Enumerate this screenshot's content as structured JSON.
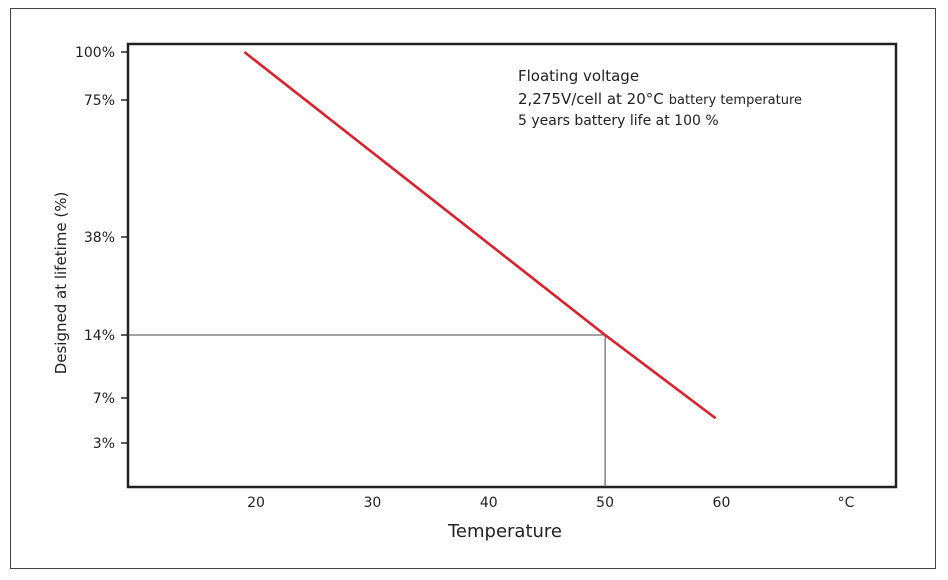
{
  "chart_data": {
    "type": "line",
    "xlabel": "Temperature",
    "ylabel": "Designed at lifetime (%)",
    "x_unit_label": "°C",
    "x_ticks": [
      20,
      30,
      40,
      50,
      60
    ],
    "xlim": [
      9,
      75
    ],
    "y_ticks": [
      "100%",
      "75%",
      "38%",
      "14%",
      "7%",
      "3%"
    ],
    "y_tick_values": [
      100,
      75,
      38,
      14,
      7,
      3
    ],
    "series": [
      {
        "x": [
          19,
          50,
          59.5
        ],
        "y": [
          100,
          14,
          5.2
        ]
      }
    ],
    "reference_point": {
      "x": 50,
      "y": 14
    },
    "annotation": {
      "line1": "Floating voltage",
      "line2_main": "2,275V/cell at 20°C",
      "line2_small": "battery temperature",
      "line3": "5 years battery life at 100 %"
    },
    "grid": false,
    "legend": "none",
    "colors": {
      "series": "#d9212b",
      "axis": "#222222",
      "reference": "#444444"
    }
  }
}
